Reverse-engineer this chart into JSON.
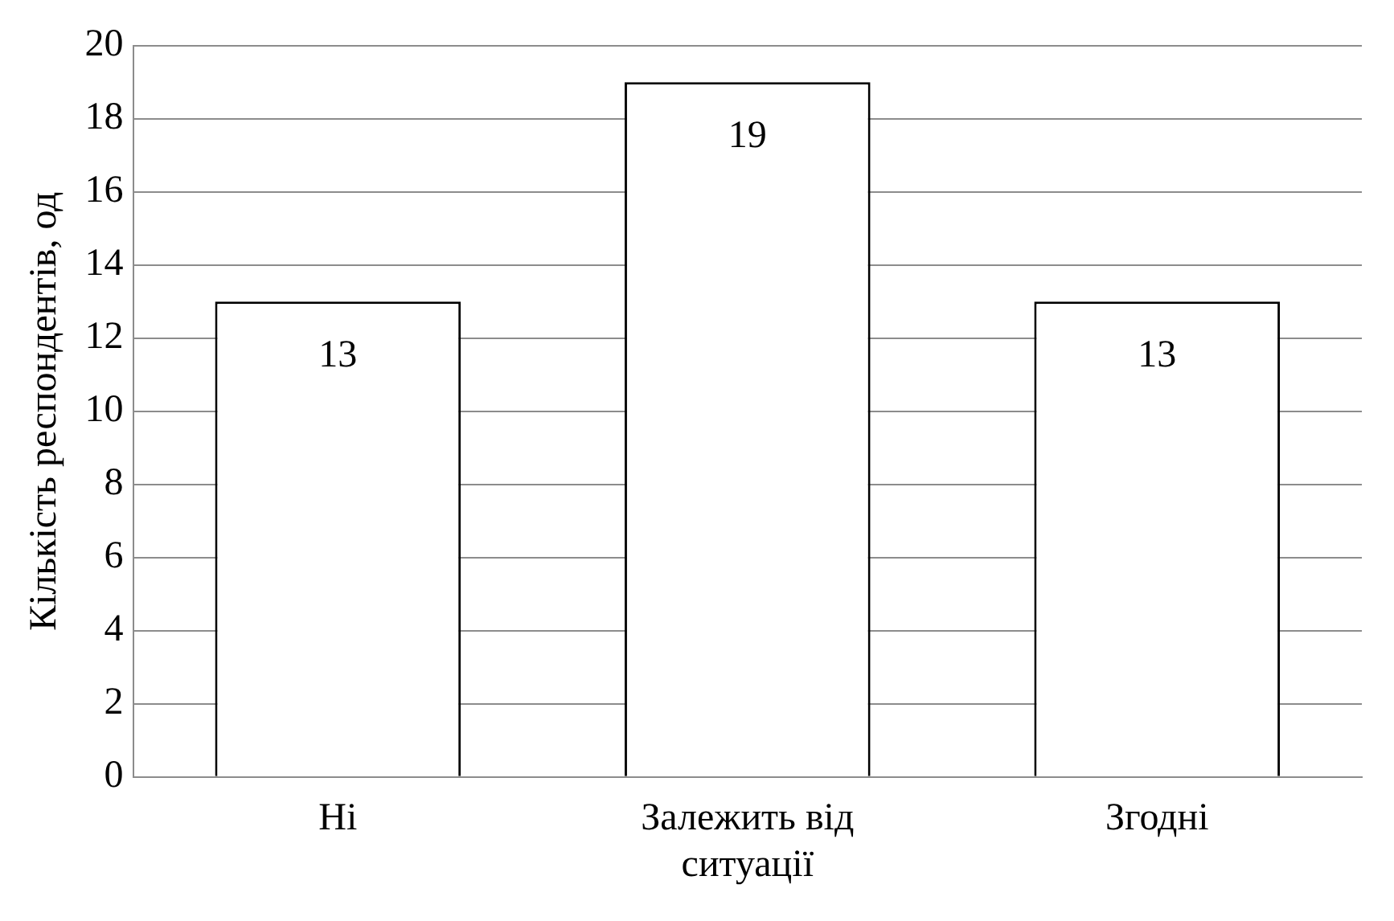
{
  "chart_data": {
    "type": "bar",
    "ylabel": "Кількість респондентів, од",
    "categories": [
      "Ні",
      "Залежить від ситуації",
      "Згодні"
    ],
    "values": [
      13,
      19,
      13
    ],
    "color": "#ffffff",
    "ylim": [
      0,
      20
    ],
    "yticks": [
      0,
      2,
      4,
      6,
      8,
      10,
      12,
      14,
      16,
      18,
      20
    ],
    "grid": "y",
    "legend": false,
    "data_labels": true
  }
}
